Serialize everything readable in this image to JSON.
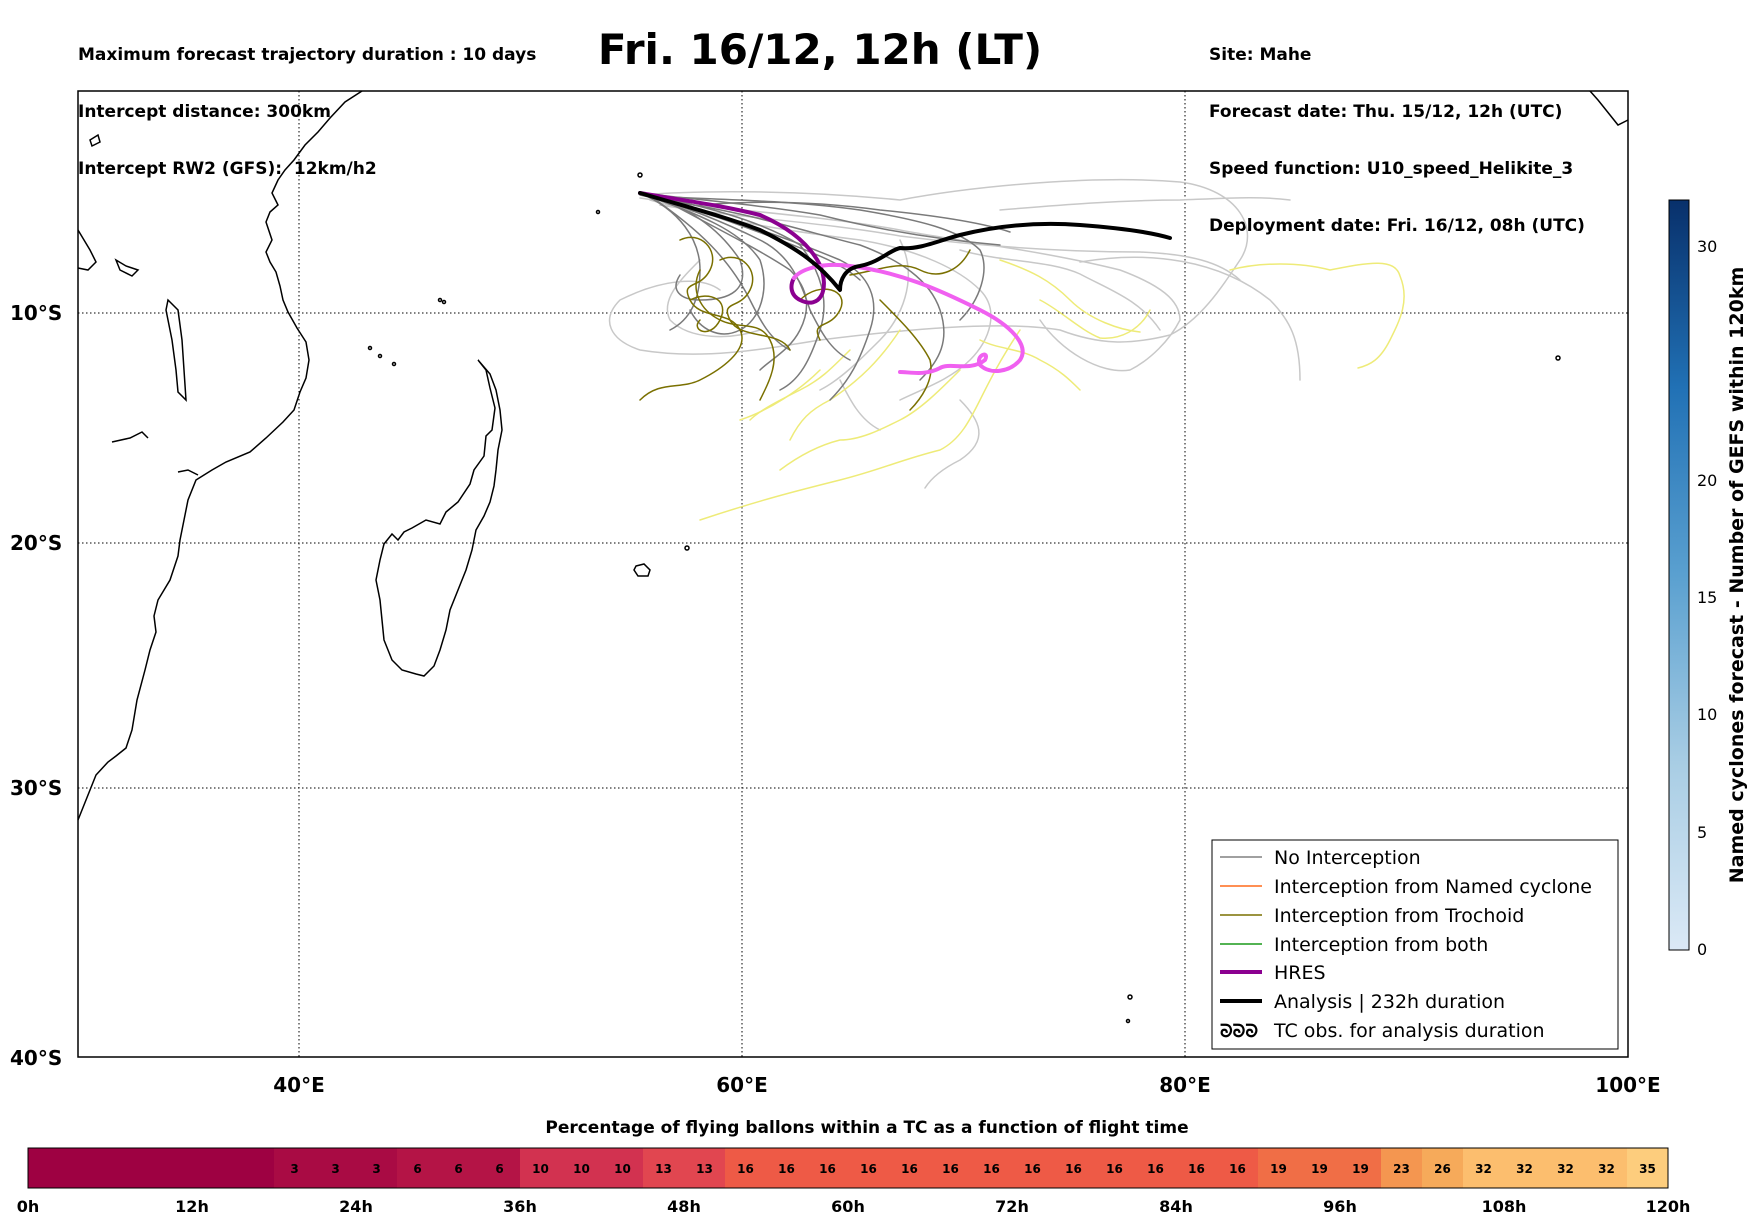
{
  "header_left": [
    "Maximum forecast trajectory duration : 10 days",
    "Intercept distance: 300km",
    "Intercept RW2 (GFS):  12km/h2"
  ],
  "title": "Fri. 16/12, 12h (LT)",
  "header_right": [
    "Site: Mahe",
    "Forecast date: Thu. 15/12, 12h (UTC)",
    "Speed function: U10_speed_Helikite_3",
    "Deployment date: Fri. 16/12, 08h (UTC)"
  ],
  "map": {
    "lon_range": [
      30,
      100
    ],
    "lat_range": [
      -40,
      0
    ],
    "lat_ticks": [
      "10°S",
      "20°S",
      "30°S",
      "40°S"
    ],
    "lon_ticks": [
      "40°E",
      "60°E",
      "80°E",
      "100°E"
    ],
    "colors": {
      "no_interception": "#808080",
      "named_cyclone": "#ff6a1a",
      "trochoid": "#7a7000",
      "both": "#1a9a1a",
      "hres": "#8b0090",
      "hres_late": "#f060f0",
      "analysis": "#000000",
      "spread_light": "#c8c8c8",
      "yellow_tracks": "#eeeb78"
    }
  },
  "legend": [
    {
      "label": "No Interception",
      "style": "no_interception"
    },
    {
      "label": "Interception from Named cyclone",
      "style": "named_cyclone"
    },
    {
      "label": "Interception from Trochoid",
      "style": "trochoid"
    },
    {
      "label": "Interception from both",
      "style": "both"
    },
    {
      "label": "HRES",
      "style": "hres"
    },
    {
      "label": "Analysis | 232h duration",
      "style": "analysis"
    },
    {
      "label": "TC obs. for analysis duration",
      "style": "tc_symbol"
    }
  ],
  "colorbar": {
    "label": "Named cyclones forecast - Number of GEFS within 120km",
    "ticks": [
      "0",
      "5",
      "10",
      "15",
      "20",
      "30"
    ]
  },
  "time_bar": {
    "title": "Percentage of flying ballons within a TC as a function of flight time",
    "cells": [
      "",
      "",
      "",
      "",
      "",
      "",
      "3",
      "3",
      "3",
      "6",
      "6",
      "6",
      "10",
      "10",
      "10",
      "13",
      "13",
      "16",
      "16",
      "16",
      "16",
      "16",
      "16",
      "16",
      "16",
      "16",
      "16",
      "16",
      "16",
      "16",
      "19",
      "19",
      "19",
      "23",
      "26",
      "32",
      "32",
      "32",
      "32",
      "35"
    ],
    "values": [
      0,
      0,
      0,
      0,
      0,
      0,
      3,
      3,
      3,
      6,
      6,
      6,
      10,
      10,
      10,
      13,
      13,
      16,
      16,
      16,
      16,
      16,
      16,
      16,
      16,
      16,
      16,
      16,
      16,
      16,
      19,
      19,
      19,
      23,
      26,
      32,
      32,
      32,
      32,
      35
    ],
    "ticks": [
      "0h",
      "12h",
      "24h",
      "36h",
      "48h",
      "60h",
      "72h",
      "84h",
      "96h",
      "108h",
      "120h"
    ]
  }
}
